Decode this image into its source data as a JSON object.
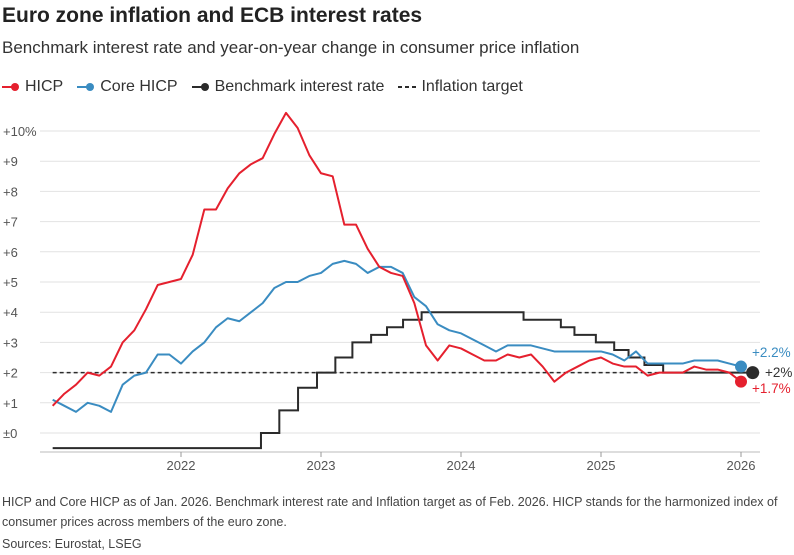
{
  "chart_data": {
    "type": "line",
    "title": "Euro zone inflation and ECB interest rates",
    "subtitle": "Benchmark interest rate and year-on-year change in consumer price inflation",
    "legend": [
      {
        "name": "HICP",
        "color": "#e5202e",
        "style": "line-dot"
      },
      {
        "name": "Core HICP",
        "color": "#3a8cc1",
        "style": "line-dot"
      },
      {
        "name": "Benchmark interest rate",
        "color": "#2b2b2b",
        "style": "line-dot"
      },
      {
        "name": "Inflation target",
        "color": "#2b2b2b",
        "style": "dashed"
      }
    ],
    "legend_placement": "top-left",
    "ylim": [
      -0.6,
      10.8
    ],
    "yticks": [
      {
        "v": 0,
        "label": "±0"
      },
      {
        "v": 1,
        "label": "+1"
      },
      {
        "v": 2,
        "label": "+2"
      },
      {
        "v": 3,
        "label": "+3"
      },
      {
        "v": 4,
        "label": "+4"
      },
      {
        "v": 5,
        "label": "+5"
      },
      {
        "v": 6,
        "label": "+6"
      },
      {
        "v": 7,
        "label": "+7"
      },
      {
        "v": 8,
        "label": "+8"
      },
      {
        "v": 9,
        "label": "+9"
      },
      {
        "v": 10,
        "label": "+10%"
      }
    ],
    "xticks": [
      "2022",
      "2023",
      "2024",
      "2025",
      "2026"
    ],
    "grid": "horizontal",
    "x_start": "2021-02",
    "hicp": [
      0.9,
      1.3,
      1.6,
      2.0,
      1.9,
      2.2,
      3.0,
      3.4,
      4.1,
      4.9,
      5.0,
      5.1,
      5.9,
      7.4,
      7.4,
      8.1,
      8.6,
      8.9,
      9.1,
      9.9,
      10.6,
      10.1,
      9.2,
      8.6,
      8.5,
      6.9,
      6.9,
      6.1,
      5.5,
      5.3,
      5.2,
      4.3,
      2.9,
      2.4,
      2.9,
      2.8,
      2.6,
      2.4,
      2.4,
      2.6,
      2.5,
      2.6,
      2.2,
      1.7,
      2.0,
      2.2,
      2.4,
      2.5,
      2.3,
      2.2,
      2.2,
      1.9,
      2.0,
      2.0,
      2.0,
      2.2,
      2.1,
      2.1,
      2.0,
      1.7
    ],
    "core_hicp": [
      1.1,
      0.9,
      0.7,
      1.0,
      0.9,
      0.7,
      1.6,
      1.9,
      2.0,
      2.6,
      2.6,
      2.3,
      2.7,
      3.0,
      3.5,
      3.8,
      3.7,
      4.0,
      4.3,
      4.8,
      5.0,
      5.0,
      5.2,
      5.3,
      5.6,
      5.7,
      5.6,
      5.3,
      5.5,
      5.5,
      5.3,
      4.5,
      4.2,
      3.6,
      3.4,
      3.3,
      3.1,
      2.9,
      2.7,
      2.9,
      2.9,
      2.9,
      2.8,
      2.7,
      2.7,
      2.7,
      2.7,
      2.7,
      2.6,
      2.4,
      2.7,
      2.3,
      2.3,
      2.3,
      2.3,
      2.4,
      2.4,
      2.4,
      2.3,
      2.2
    ],
    "benchmark_rate_steps": [
      {
        "date": "2021-02-01",
        "v": -0.5
      },
      {
        "date": "2022-07-27",
        "v": 0
      },
      {
        "date": "2022-09-14",
        "v": 0.75
      },
      {
        "date": "2022-11-02",
        "v": 1.5
      },
      {
        "date": "2022-12-21",
        "v": 2.0
      },
      {
        "date": "2023-02-08",
        "v": 2.5
      },
      {
        "date": "2023-03-22",
        "v": 3.0
      },
      {
        "date": "2023-05-10",
        "v": 3.25
      },
      {
        "date": "2023-06-21",
        "v": 3.5
      },
      {
        "date": "2023-08-02",
        "v": 3.75
      },
      {
        "date": "2023-09-20",
        "v": 4.0
      },
      {
        "date": "2024-06-12",
        "v": 3.75
      },
      {
        "date": "2024-09-18",
        "v": 3.5
      },
      {
        "date": "2024-10-23",
        "v": 3.25
      },
      {
        "date": "2024-12-18",
        "v": 3.0
      },
      {
        "date": "2025-02-05",
        "v": 2.75
      },
      {
        "date": "2025-03-12",
        "v": 2.5
      },
      {
        "date": "2025-04-23",
        "v": 2.25
      },
      {
        "date": "2025-06-11",
        "v": 2.0
      },
      {
        "date": "2026-02-01",
        "v": 2.0
      }
    ],
    "inflation_target": 2,
    "end_labels": {
      "core_hicp": "+2.2%",
      "benchmark_rate": "+2%",
      "hicp": "+1.7%"
    }
  },
  "note": "HICP and Core HICP as of Jan. 2026. Benchmark interest rate and Inflation target as of Feb. 2026. HICP stands for the harmonized index of consumer prices across members of the euro zone.",
  "source": "Sources: Eurostat, LSEG"
}
